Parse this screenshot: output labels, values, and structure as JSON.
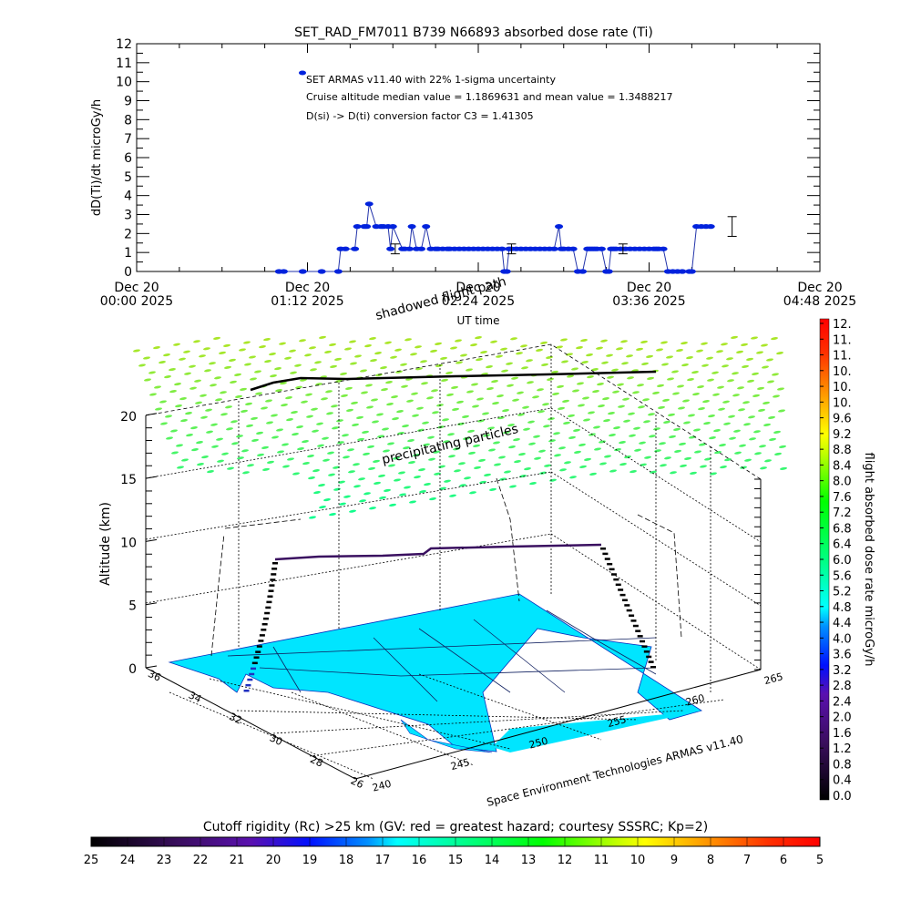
{
  "chart_data": [
    {
      "type": "line",
      "title": "SET_RAD_FM7011  B739 N66893 absorbed dose rate (Ti)",
      "xlabel": "UT time",
      "ylabel": "dD(Ti)/dt microGy/h",
      "ylim": [
        0,
        12
      ],
      "xlim_minutes": [
        0,
        288
      ],
      "yticks": [
        "0",
        "1",
        "2",
        "3",
        "4",
        "5",
        "6",
        "7",
        "8",
        "9",
        "10",
        "11",
        "12"
      ],
      "xticks": [
        {
          "line1": "Dec 20",
          "line2": "00:00 2025",
          "minute": 0
        },
        {
          "line1": "Dec 20",
          "line2": "01:12 2025",
          "minute": 72
        },
        {
          "line1": "Dec 20",
          "line2": "02:24 2025",
          "minute": 144
        },
        {
          "line1": "Dec 20",
          "line2": "03:36 2025",
          "minute": 216
        },
        {
          "line1": "Dec 20",
          "line2": "04:48 2025",
          "minute": 288
        }
      ],
      "legend": [
        "SET ARMAS v11.40 with 22% 1-sigma uncertainty",
        "Cruise altitude median value = 1.1869631 and mean value = 1.3488217",
        "D(si) -> D(ti) conversion factor C3 = 1.41305"
      ],
      "series": [
        {
          "name": "SET ARMAS v11.40",
          "color": "#0022dd",
          "x_minutes": [
            60,
            62,
            70,
            78,
            85,
            86,
            88,
            92,
            93,
            96,
            97,
            98,
            101,
            103,
            104,
            106,
            107,
            108,
            112,
            113,
            115,
            116,
            118,
            120,
            122,
            124,
            126,
            127,
            129,
            131,
            132,
            134,
            136,
            138,
            140,
            142,
            144,
            146,
            148,
            150,
            152,
            154,
            155,
            156,
            157,
            158,
            160,
            162,
            164,
            166,
            168,
            170,
            172,
            174,
            176,
            178,
            179,
            180,
            182,
            184,
            186,
            188,
            190,
            191,
            192,
            193,
            194,
            196,
            198,
            199,
            200,
            201,
            202,
            204,
            206,
            208,
            210,
            212,
            214,
            216,
            218,
            219,
            220,
            222,
            224,
            226,
            228,
            230,
            233,
            234,
            236,
            238,
            240,
            242
          ],
          "y": [
            0,
            0,
            0,
            0,
            0,
            1.19,
            1.19,
            1.19,
            2.37,
            2.37,
            2.37,
            3.56,
            2.37,
            2.37,
            2.37,
            2.37,
            1.19,
            2.37,
            1.19,
            1.19,
            1.19,
            2.37,
            1.19,
            1.19,
            2.37,
            1.19,
            1.19,
            1.19,
            1.19,
            1.19,
            1.19,
            1.19,
            1.19,
            1.19,
            1.19,
            1.19,
            1.19,
            1.19,
            1.19,
            1.19,
            1.19,
            1.19,
            0,
            0,
            1.19,
            1.19,
            1.19,
            1.19,
            1.19,
            1.19,
            1.19,
            1.19,
            1.19,
            1.19,
            1.19,
            2.37,
            1.19,
            1.19,
            1.19,
            1.19,
            0,
            0,
            1.19,
            1.19,
            1.19,
            1.19,
            1.19,
            1.19,
            0,
            0,
            1.19,
            1.19,
            1.19,
            1.19,
            1.19,
            1.19,
            1.19,
            1.19,
            1.19,
            1.19,
            1.19,
            1.19,
            1.19,
            1.19,
            0,
            0,
            0,
            0,
            0,
            0,
            2.37,
            2.37,
            2.37,
            2.37
          ],
          "error_bars": [
            {
              "minute": 109,
              "value": 1.19,
              "low": 0.93,
              "high": 1.45
            },
            {
              "minute": 158,
              "value": 1.19,
              "low": 0.93,
              "high": 1.45
            },
            {
              "minute": 205,
              "value": 1.19,
              "low": 0.93,
              "high": 1.45
            },
            {
              "minute": 251,
              "value": 2.37,
              "low": 1.85,
              "high": 2.89
            }
          ]
        }
      ]
    },
    {
      "type": "scatter",
      "title": "3D flight path",
      "zlabel": "Altitude (km)",
      "zticks": [
        "0",
        "5",
        "10",
        "15",
        "20"
      ],
      "zlim": [
        0,
        20
      ],
      "lat_ticks": [
        "36",
        "34",
        "32",
        "30",
        "28",
        "26"
      ],
      "lon_ticks": [
        "240",
        "245",
        "250",
        "255",
        "260",
        "265"
      ],
      "annotations": [
        "shadowed flight path",
        "precipitating particles"
      ],
      "credit": "Space Environment Technologies ARMAS v11.40",
      "flight_path_cruise_altitude_km": [
        9.5,
        9.5,
        9.5,
        9.6,
        9.9,
        10,
        10,
        10,
        10,
        10
      ],
      "flight_path_color": "#3a1060"
    }
  ],
  "colorbars": {
    "dose_rate": {
      "label": "flight absorbed dose rate microGy/h",
      "ticks": [
        "12.",
        "11.",
        "11.",
        "10.",
        "10.",
        "10.",
        "9.6",
        "9.2",
        "8.8",
        "8.4",
        "8.0",
        "7.6",
        "7.2",
        "6.8",
        "6.4",
        "6.0",
        "5.6",
        "5.2",
        "4.8",
        "4.4",
        "4.0",
        "3.6",
        "3.2",
        "2.8",
        "2.4",
        "2.0",
        "1.6",
        "1.2",
        "0.8",
        "0.4",
        "0.0"
      ],
      "range": [
        0,
        12
      ]
    },
    "cutoff_rigidity": {
      "label": "Cutoff rigidity (Rc) >25 km (GV: red = greatest hazard; courtesy SSSRC; Kp=2)",
      "ticks": [
        "25",
        "24",
        "23",
        "22",
        "21",
        "20",
        "19",
        "18",
        "17",
        "16",
        "15",
        "14",
        "13",
        "12",
        "11",
        "10",
        "9",
        "8",
        "7",
        "6",
        "5"
      ],
      "range": [
        25,
        5
      ]
    }
  }
}
